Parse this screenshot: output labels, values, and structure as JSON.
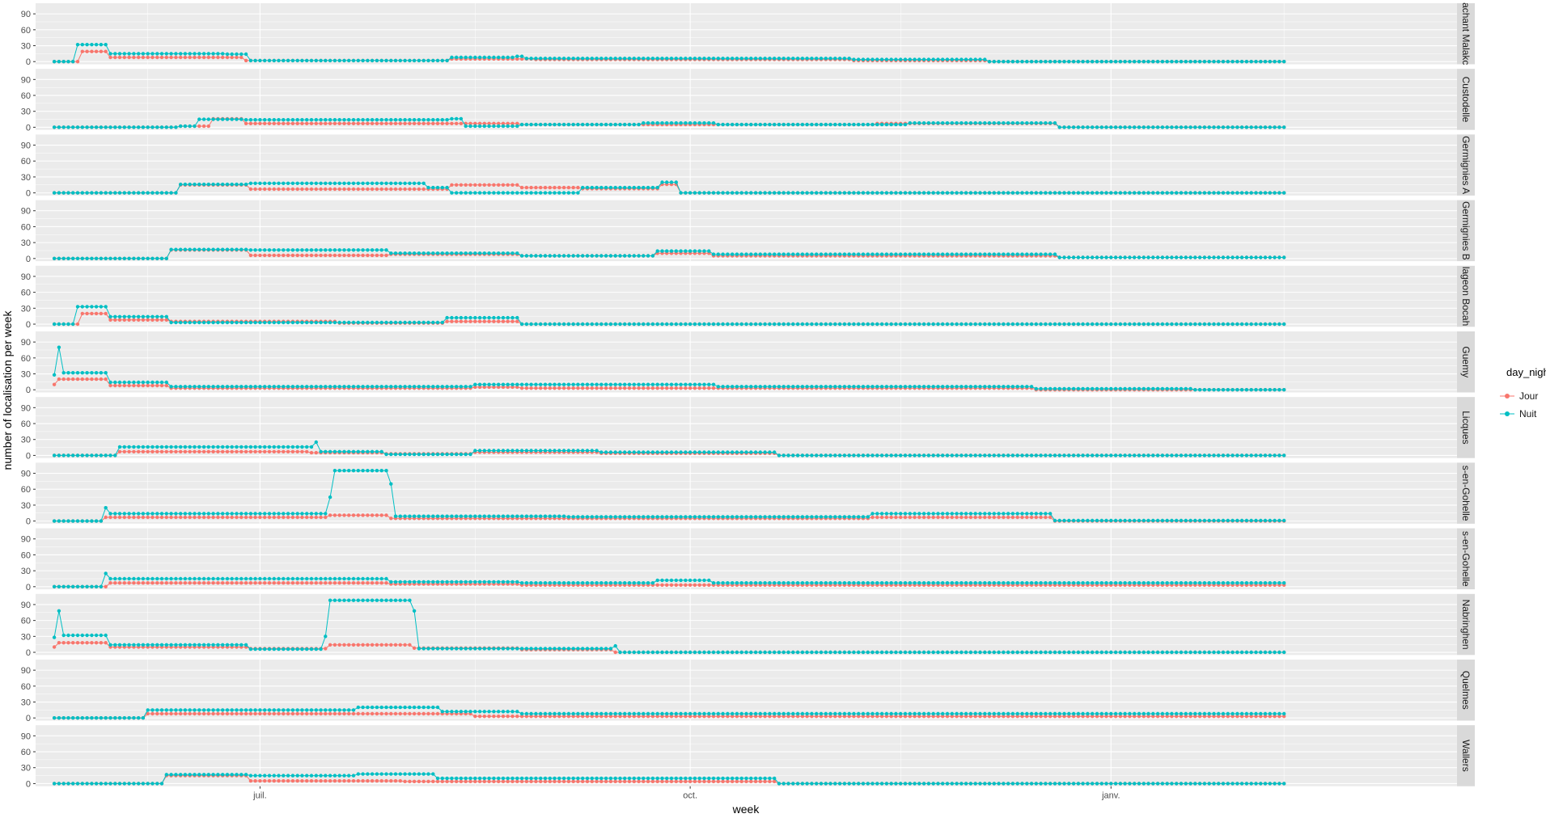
{
  "colors": {
    "jour": "#F8766D",
    "nuit": "#00BFC4",
    "panel_bg": "#EBEBEB",
    "strip_bg": "#D9D9D9",
    "grid": "#FFFFFF"
  },
  "chart_data": {
    "type": "line",
    "xlabel": "week",
    "ylabel": "number of localisation per week",
    "ylim": [
      -5,
      110
    ],
    "y_ticks": [
      0,
      30,
      60,
      90
    ],
    "x_range": [
      -4,
      300
    ],
    "x_ticks": [
      {
        "x": 44,
        "label": "juil."
      },
      {
        "x": 136,
        "label": "oct."
      },
      {
        "x": 226,
        "label": "janv."
      }
    ],
    "legend": {
      "title": "day_night",
      "entries": [
        {
          "key": "jour",
          "label": "Jour"
        },
        {
          "key": "nuit",
          "label": "Nuit"
        }
      ]
    },
    "n_weeks": 264,
    "panels": [
      {
        "name": "achant Malakc",
        "jour": [
          [
            0,
            6,
            0
          ],
          [
            6,
            12,
            19
          ],
          [
            12,
            41,
            8
          ],
          [
            41,
            85,
            2
          ],
          [
            85,
            103,
            5
          ],
          [
            103,
            121,
            4
          ],
          [
            121,
            171,
            4
          ],
          [
            171,
            200,
            2
          ],
          [
            200,
            264,
            0
          ]
        ],
        "nuit": [
          [
            0,
            5,
            0
          ],
          [
            5,
            12,
            32
          ],
          [
            12,
            37,
            15
          ],
          [
            37,
            42,
            14
          ],
          [
            42,
            85,
            2
          ],
          [
            85,
            99,
            8
          ],
          [
            99,
            101,
            10
          ],
          [
            101,
            121,
            6
          ],
          [
            121,
            171,
            6
          ],
          [
            171,
            185,
            4
          ],
          [
            185,
            200,
            4
          ],
          [
            200,
            264,
            0
          ]
        ]
      },
      {
        "name": "Custodelle",
        "jour": [
          [
            0,
            27,
            0
          ],
          [
            27,
            34,
            2
          ],
          [
            34,
            41,
            16
          ],
          [
            41,
            85,
            7
          ],
          [
            85,
            100,
            7
          ],
          [
            100,
            176,
            5
          ],
          [
            176,
            215,
            7
          ],
          [
            215,
            264,
            0
          ]
        ],
        "nuit": [
          [
            0,
            27,
            0
          ],
          [
            27,
            31,
            2
          ],
          [
            31,
            41,
            15
          ],
          [
            41,
            85,
            14
          ],
          [
            85,
            88,
            16
          ],
          [
            88,
            100,
            2
          ],
          [
            100,
            126,
            5
          ],
          [
            126,
            142,
            8
          ],
          [
            142,
            183,
            5
          ],
          [
            183,
            215,
            8
          ],
          [
            215,
            264,
            0
          ]
        ]
      },
      {
        "name": "Germignies A",
        "jour": [
          [
            0,
            27,
            0
          ],
          [
            27,
            42,
            15
          ],
          [
            42,
            85,
            7
          ],
          [
            85,
            100,
            15
          ],
          [
            100,
            113,
            10
          ],
          [
            113,
            130,
            8
          ],
          [
            130,
            134,
            16
          ],
          [
            134,
            264,
            0
          ]
        ],
        "nuit": [
          [
            0,
            27,
            0
          ],
          [
            27,
            42,
            16
          ],
          [
            42,
            80,
            18
          ],
          [
            80,
            85,
            10
          ],
          [
            85,
            113,
            0
          ],
          [
            113,
            130,
            10
          ],
          [
            130,
            134,
            20
          ],
          [
            134,
            264,
            0
          ]
        ]
      },
      {
        "name": "Germignies B",
        "jour": [
          [
            0,
            25,
            0
          ],
          [
            25,
            42,
            16
          ],
          [
            42,
            72,
            6
          ],
          [
            72,
            100,
            8
          ],
          [
            100,
            129,
            5
          ],
          [
            129,
            141,
            10
          ],
          [
            141,
            215,
            5
          ],
          [
            215,
            264,
            2
          ]
        ],
        "nuit": [
          [
            0,
            25,
            0
          ],
          [
            25,
            42,
            17
          ],
          [
            42,
            72,
            16
          ],
          [
            72,
            100,
            10
          ],
          [
            100,
            129,
            5
          ],
          [
            129,
            141,
            14
          ],
          [
            141,
            215,
            8
          ],
          [
            215,
            264,
            2
          ]
        ]
      },
      {
        "name": "lageon Bocah",
        "jour": [
          [
            0,
            6,
            0
          ],
          [
            6,
            12,
            20
          ],
          [
            12,
            25,
            8
          ],
          [
            25,
            61,
            5
          ],
          [
            61,
            84,
            2
          ],
          [
            84,
            100,
            5
          ],
          [
            100,
            264,
            0
          ]
        ],
        "nuit": [
          [
            0,
            5,
            0
          ],
          [
            5,
            12,
            33
          ],
          [
            12,
            25,
            14
          ],
          [
            25,
            84,
            3
          ],
          [
            84,
            100,
            12
          ],
          [
            100,
            264,
            0
          ]
        ]
      },
      {
        "name": "Guemy",
        "jour": [
          [
            0,
            1,
            10
          ],
          [
            1,
            12,
            20
          ],
          [
            12,
            25,
            8
          ],
          [
            25,
            90,
            3
          ],
          [
            90,
            100,
            5
          ],
          [
            100,
            142,
            3
          ],
          [
            142,
            210,
            3
          ],
          [
            210,
            244,
            0
          ],
          [
            244,
            264,
            0
          ]
        ],
        "nuit": [
          [
            0,
            1,
            28
          ],
          [
            1,
            2,
            80
          ],
          [
            2,
            12,
            32
          ],
          [
            12,
            25,
            14
          ],
          [
            25,
            90,
            6
          ],
          [
            90,
            100,
            10
          ],
          [
            100,
            142,
            10
          ],
          [
            142,
            210,
            6
          ],
          [
            210,
            244,
            2
          ],
          [
            244,
            264,
            0
          ]
        ]
      },
      {
        "name": "Licques",
        "jour": [
          [
            0,
            14,
            0
          ],
          [
            14,
            55,
            7
          ],
          [
            55,
            71,
            5
          ],
          [
            71,
            90,
            3
          ],
          [
            90,
            117,
            6
          ],
          [
            117,
            155,
            4
          ],
          [
            155,
            264,
            0
          ]
        ],
        "nuit": [
          [
            0,
            14,
            0
          ],
          [
            14,
            56,
            16
          ],
          [
            56,
            57,
            25
          ],
          [
            57,
            71,
            7
          ],
          [
            71,
            90,
            2
          ],
          [
            90,
            117,
            9
          ],
          [
            117,
            155,
            6
          ],
          [
            155,
            264,
            0
          ]
        ]
      },
      {
        "name": "s-en-Gohelle",
        "jour": [
          [
            0,
            11,
            0
          ],
          [
            11,
            59,
            7
          ],
          [
            59,
            72,
            11
          ],
          [
            72,
            110,
            5
          ],
          [
            110,
            175,
            5
          ],
          [
            175,
            214,
            7
          ],
          [
            214,
            264,
            0
          ]
        ],
        "nuit": [
          [
            0,
            11,
            0
          ],
          [
            11,
            12,
            25
          ],
          [
            12,
            59,
            14
          ],
          [
            59,
            60,
            45
          ],
          [
            60,
            72,
            95
          ],
          [
            72,
            73,
            70
          ],
          [
            73,
            110,
            9
          ],
          [
            110,
            175,
            8
          ],
          [
            175,
            214,
            14
          ],
          [
            214,
            264,
            1
          ]
        ]
      },
      {
        "name": "s-en-Gohelle",
        "jour": [
          [
            0,
            12,
            0
          ],
          [
            12,
            72,
            7
          ],
          [
            72,
            100,
            5
          ],
          [
            100,
            264,
            3
          ]
        ],
        "nuit": [
          [
            0,
            11,
            0
          ],
          [
            11,
            12,
            25
          ],
          [
            12,
            72,
            15
          ],
          [
            72,
            100,
            9
          ],
          [
            100,
            129,
            7
          ],
          [
            129,
            141,
            12
          ],
          [
            141,
            264,
            7
          ]
        ]
      },
      {
        "name": "Nabringhen",
        "jour": [
          [
            0,
            1,
            10
          ],
          [
            1,
            12,
            18
          ],
          [
            12,
            42,
            10
          ],
          [
            42,
            59,
            7
          ],
          [
            59,
            77,
            14
          ],
          [
            77,
            100,
            8
          ],
          [
            100,
            120,
            5
          ],
          [
            120,
            264,
            0
          ]
        ],
        "nuit": [
          [
            0,
            1,
            28
          ],
          [
            1,
            2,
            78
          ],
          [
            2,
            12,
            32
          ],
          [
            12,
            42,
            14
          ],
          [
            42,
            58,
            6
          ],
          [
            58,
            59,
            30
          ],
          [
            59,
            77,
            98
          ],
          [
            77,
            78,
            78
          ],
          [
            78,
            120,
            7
          ],
          [
            120,
            121,
            12
          ],
          [
            121,
            264,
            0
          ]
        ]
      },
      {
        "name": "Quelmes",
        "jour": [
          [
            0,
            20,
            0
          ],
          [
            20,
            90,
            8
          ],
          [
            90,
            264,
            3
          ]
        ],
        "nuit": [
          [
            0,
            20,
            0
          ],
          [
            20,
            65,
            15
          ],
          [
            65,
            83,
            20
          ],
          [
            83,
            100,
            12
          ],
          [
            100,
            264,
            8
          ]
        ]
      },
      {
        "name": "Wallers",
        "jour": [
          [
            0,
            24,
            0
          ],
          [
            24,
            42,
            15
          ],
          [
            42,
            75,
            5
          ],
          [
            75,
            155,
            4
          ],
          [
            155,
            264,
            0
          ]
        ],
        "nuit": [
          [
            0,
            24,
            0
          ],
          [
            24,
            42,
            17
          ],
          [
            42,
            65,
            15
          ],
          [
            65,
            82,
            18
          ],
          [
            82,
            100,
            10
          ],
          [
            100,
            155,
            10
          ],
          [
            155,
            264,
            0
          ]
        ]
      }
    ]
  }
}
